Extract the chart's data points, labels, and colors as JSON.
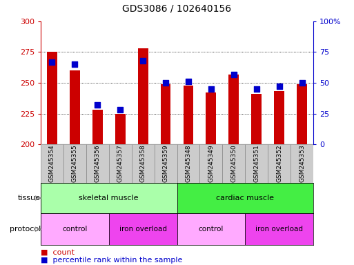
{
  "title": "GDS3086 / 102640156",
  "samples": [
    "GSM245354",
    "GSM245355",
    "GSM245356",
    "GSM245357",
    "GSM245358",
    "GSM245359",
    "GSM245348",
    "GSM245349",
    "GSM245350",
    "GSM245351",
    "GSM245352",
    "GSM245353"
  ],
  "counts": [
    275,
    260,
    228,
    225,
    278,
    249,
    248,
    242,
    257,
    241,
    243,
    249
  ],
  "percentile_ranks": [
    67,
    65,
    32,
    28,
    68,
    50,
    51,
    45,
    57,
    45,
    47,
    50
  ],
  "count_base": 200,
  "count_ylim": [
    200,
    300
  ],
  "pct_ylim": [
    0,
    100
  ],
  "yticks_left": [
    200,
    225,
    250,
    275,
    300
  ],
  "yticks_right": [
    0,
    25,
    50,
    75,
    100
  ],
  "bar_color": "#cc0000",
  "dot_color": "#0000cc",
  "bar_width": 0.45,
  "dot_size": 28,
  "tissue_labels": [
    {
      "text": "skeletal muscle",
      "start": 0,
      "end": 5,
      "color": "#aaffaa"
    },
    {
      "text": "cardiac muscle",
      "start": 6,
      "end": 11,
      "color": "#44ee44"
    }
  ],
  "protocol_labels": [
    {
      "text": "control",
      "start": 0,
      "end": 2,
      "color": "#ffaaff"
    },
    {
      "text": "iron overload",
      "start": 3,
      "end": 5,
      "color": "#ee44ee"
    },
    {
      "text": "control",
      "start": 6,
      "end": 8,
      "color": "#ffaaff"
    },
    {
      "text": "iron overload",
      "start": 9,
      "end": 11,
      "color": "#ee44ee"
    }
  ],
  "left_axis_color": "#cc0000",
  "right_axis_color": "#0000cc",
  "grid_yticks": [
    225,
    250,
    275
  ],
  "bg_color": "#ffffff",
  "tick_label_bg": "#cccccc",
  "legend_count_color": "#cc0000",
  "legend_pct_color": "#0000cc"
}
